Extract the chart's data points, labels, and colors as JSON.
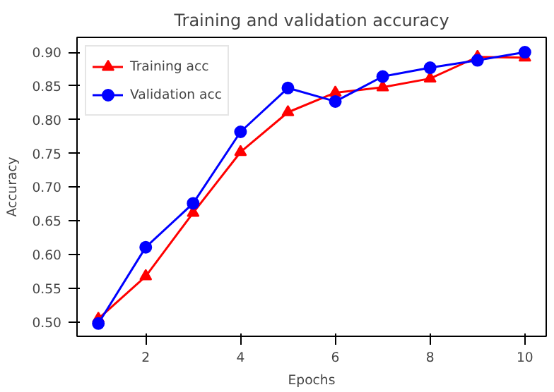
{
  "chart_data": {
    "type": "line",
    "title": "Training and validation accuracy",
    "xlabel": "Epochs",
    "ylabel": "Accuracy",
    "x": [
      1,
      2,
      3,
      4,
      5,
      6,
      7,
      8,
      9,
      10
    ],
    "series": [
      {
        "name": "Training acc",
        "color": "#ff0000",
        "marker": "triangle",
        "values": [
          0.505,
          0.568,
          0.662,
          0.752,
          0.811,
          0.84,
          0.848,
          0.861,
          0.893,
          0.892
        ]
      },
      {
        "name": "Validation acc",
        "color": "#0000ff",
        "marker": "circle",
        "values": [
          0.498,
          0.611,
          0.676,
          0.782,
          0.847,
          0.827,
          0.864,
          0.877,
          0.888,
          0.9
        ]
      }
    ],
    "xlim": [
      0.55,
      10.45
    ],
    "ylim": [
      0.479,
      0.922
    ],
    "xticks": [
      2,
      4,
      6,
      8,
      10
    ],
    "yticks": [
      {
        "value": 0.5,
        "label": "0.50"
      },
      {
        "value": 0.55,
        "label": "0.55"
      },
      {
        "value": 0.6,
        "label": "0.60"
      },
      {
        "value": 0.65,
        "label": "0.65"
      },
      {
        "value": 0.7,
        "label": "0.70"
      },
      {
        "value": 0.75,
        "label": "0.75"
      },
      {
        "value": 0.8,
        "label": "0.80"
      },
      {
        "value": 0.85,
        "label": "0.85"
      },
      {
        "value": 0.9,
        "label": "0.90"
      }
    ],
    "legend": "top left",
    "grid": false,
    "line_style": "solid"
  }
}
